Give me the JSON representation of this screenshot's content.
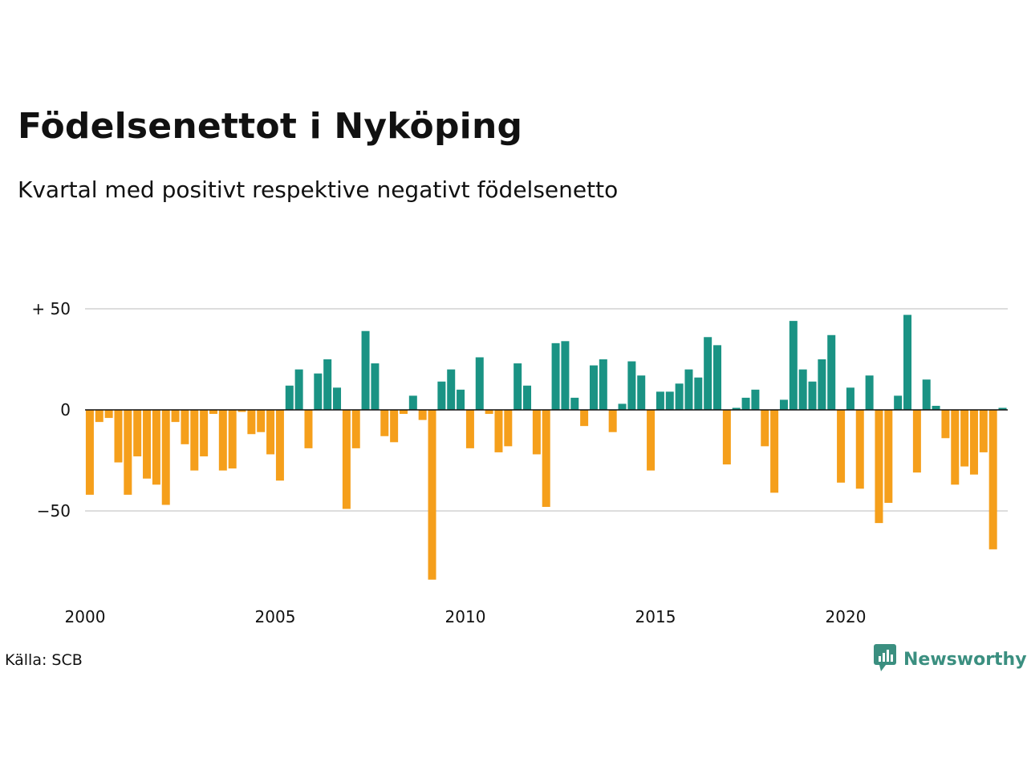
{
  "header": {
    "title": "Födelsenettot i Nyköping",
    "subtitle": "Kvartal med positivt respektive negativt födelsenetto"
  },
  "footer": {
    "source": "Källa: SCB",
    "brand": "Newsworthy"
  },
  "colors": {
    "positive": "#1a9384",
    "negative": "#f59f1b",
    "grid": "#dddddd",
    "zero_line": "#111111",
    "brand": "#3b8f80"
  },
  "icons": {
    "brand_logo": "newsworthy-logo-icon"
  },
  "chart_data": {
    "type": "bar",
    "title": "Födelsenettot i Nyköping",
    "subtitle": "Kvartal med positivt respektive negativt födelsenetto",
    "xlabel": "",
    "ylabel": "",
    "ylim": [
      -88,
      50
    ],
    "yticks": [
      {
        "value": 50,
        "label": "+ 50"
      },
      {
        "value": 0,
        "label": "0"
      },
      {
        "value": -50,
        "label": "−50"
      }
    ],
    "xticks": [
      "2000",
      "2005",
      "2010",
      "2015",
      "2020"
    ],
    "start": "2000 Q1",
    "interval": "quarter",
    "values": [
      -42,
      -6,
      -4,
      -26,
      -42,
      -23,
      -34,
      -37,
      -47,
      -6,
      -17,
      -30,
      -23,
      -2,
      -30,
      -29,
      -1,
      -12,
      -11,
      -22,
      -35,
      12,
      20,
      -19,
      18,
      25,
      11,
      -49,
      -19,
      39,
      23,
      -13,
      -16,
      -2,
      7,
      -5,
      -84,
      14,
      20,
      10,
      -19,
      26,
      -2,
      -21,
      -18,
      23,
      12,
      -22,
      -48,
      33,
      34,
      6,
      -8,
      22,
      25,
      -11,
      3,
      24,
      17,
      -30,
      9,
      9,
      13,
      20,
      16,
      36,
      32,
      -27,
      1,
      6,
      10,
      -18,
      -41,
      5,
      44,
      20,
      14,
      25,
      37,
      -36,
      11,
      -39,
      17,
      -56,
      -46,
      7,
      47,
      -31,
      15,
      2,
      -14,
      -37,
      -28,
      -32,
      -21,
      -69,
      1
    ],
    "grid": true,
    "legend": "none"
  }
}
